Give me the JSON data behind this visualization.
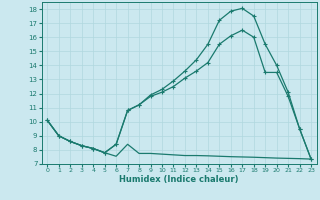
{
  "xlabel": "Humidex (Indice chaleur)",
  "bg_color": "#cbe8ef",
  "line_color": "#1a7a6e",
  "grid_color": "#b0d8de",
  "xlim": [
    -0.5,
    23.5
  ],
  "ylim": [
    7,
    18.5
  ],
  "xticks": [
    0,
    1,
    2,
    3,
    4,
    5,
    6,
    7,
    8,
    9,
    10,
    11,
    12,
    13,
    14,
    15,
    16,
    17,
    18,
    19,
    20,
    21,
    22,
    23
  ],
  "yticks": [
    7,
    8,
    9,
    10,
    11,
    12,
    13,
    14,
    15,
    16,
    17,
    18
  ],
  "curve1_x": [
    0,
    1,
    2,
    3,
    4,
    5,
    6,
    7,
    8,
    9,
    10,
    11,
    12,
    13,
    14,
    15,
    16,
    17,
    18,
    19,
    20,
    21,
    22,
    23
  ],
  "curve1_y": [
    10.1,
    9.0,
    8.6,
    8.3,
    8.1,
    7.8,
    7.55,
    8.4,
    7.75,
    7.75,
    7.7,
    7.65,
    7.6,
    7.6,
    7.58,
    7.55,
    7.52,
    7.5,
    7.48,
    7.45,
    7.42,
    7.4,
    7.38,
    7.35
  ],
  "curve2_x": [
    0,
    1,
    2,
    3,
    4,
    5,
    6,
    7,
    8,
    9,
    10,
    11,
    12,
    13,
    14,
    15,
    16,
    17,
    18,
    19,
    20,
    21,
    22,
    23
  ],
  "curve2_y": [
    10.1,
    9.0,
    8.6,
    8.3,
    8.1,
    7.8,
    8.4,
    10.8,
    11.2,
    11.8,
    12.1,
    12.5,
    13.1,
    13.6,
    14.2,
    15.5,
    16.1,
    16.5,
    16.0,
    13.5,
    13.5,
    11.8,
    9.5,
    7.35
  ],
  "curve3_x": [
    0,
    1,
    2,
    3,
    4,
    5,
    6,
    7,
    8,
    9,
    10,
    11,
    12,
    13,
    14,
    15,
    16,
    17,
    18,
    19,
    20,
    21,
    22,
    23
  ],
  "curve3_y": [
    10.1,
    9.0,
    8.6,
    8.3,
    8.1,
    7.8,
    8.4,
    10.8,
    11.2,
    11.9,
    12.3,
    12.9,
    13.6,
    14.4,
    15.5,
    17.2,
    17.85,
    18.05,
    17.5,
    15.5,
    14.0,
    12.1,
    9.5,
    7.35
  ]
}
